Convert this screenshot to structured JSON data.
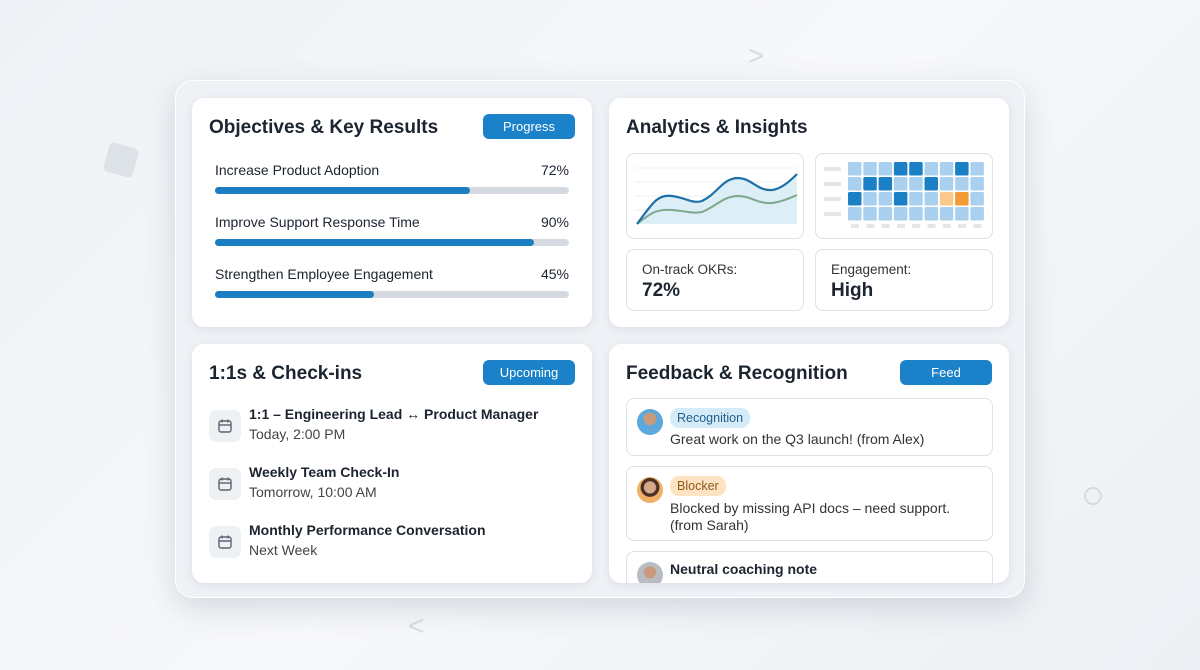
{
  "okr": {
    "title": "Objectives & Key Results",
    "button": "Progress",
    "items": [
      {
        "label": "Increase Product Adoption",
        "percent": 72,
        "percent_label": "72%"
      },
      {
        "label": "Improve Support Response Time",
        "percent": 90,
        "percent_label": "90%"
      },
      {
        "label": "Strengthen Employee Engagement",
        "percent": 45,
        "percent_label": "45%"
      }
    ]
  },
  "analytics": {
    "title": "Analytics & Insights",
    "heatmap": [
      [
        1,
        1,
        1,
        3,
        3,
        1,
        1,
        3,
        1
      ],
      [
        1,
        3,
        3,
        1,
        1,
        3,
        1,
        1,
        1
      ],
      [
        3,
        1,
        1,
        3,
        1,
        1,
        "o1",
        "o2",
        1
      ],
      [
        1,
        1,
        1,
        1,
        1,
        1,
        1,
        1,
        1
      ]
    ],
    "stats": [
      {
        "label": "On-track OKRs:",
        "value": "72%"
      },
      {
        "label": "Engagement:",
        "value": "High"
      }
    ]
  },
  "checkins": {
    "title": "1:1s & Check-ins",
    "button": "Upcoming",
    "items": [
      {
        "title": "1:1 – Engineering Lead ↔ Product Manager",
        "time": "Today, 2:00 PM"
      },
      {
        "title": "Weekly Team Check-In",
        "time": "Tomorrow, 10:00 AM"
      },
      {
        "title": "Monthly Performance Conversation",
        "time": "Next Week"
      }
    ]
  },
  "feedback": {
    "title": "Feedback & Recognition",
    "button": "Feed",
    "items": [
      {
        "tag": "Recognition",
        "text": "Great work on the Q3 launch! (from Alex)"
      },
      {
        "tag": "Blocker",
        "text": "Blocked by missing API docs – need support.",
        "text2": "(from Sarah)"
      },
      {
        "title": "Neutral coaching note"
      }
    ]
  },
  "colors": {
    "accent": "#1b82c9",
    "recognition_bg": "#d6ebf8",
    "blocker_bg": "#fde3c2",
    "heat_dark": "#1b80c6",
    "heat_light": "#a9d0ee",
    "orange": "#f39a33"
  }
}
